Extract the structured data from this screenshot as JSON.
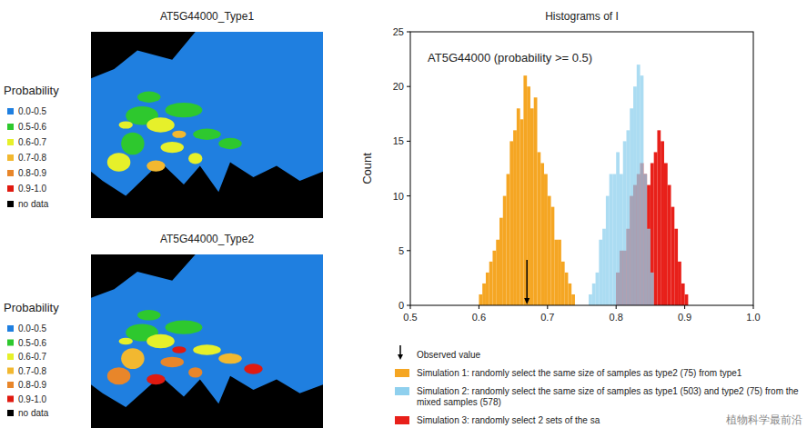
{
  "chart_data": [
    {
      "type": "map",
      "title": "AT5G44000_Type1",
      "legend_title": "Probability",
      "categories": [
        "0.0-0.5",
        "0.5-0.6",
        "0.6-0.7",
        "0.7-0.8",
        "0.8-0.9",
        "0.9-1.0",
        "no data"
      ],
      "colors": [
        "#1f7fe0",
        "#2ec82e",
        "#e6f02a",
        "#f2b830",
        "#e8862a",
        "#e01a10",
        "#000000"
      ]
    },
    {
      "type": "map",
      "title": "AT5G44000_Type2",
      "legend_title": "Probability",
      "categories": [
        "0.0-0.5",
        "0.5-0.6",
        "0.6-0.7",
        "0.7-0.8",
        "0.8-0.9",
        "0.9-1.0",
        "no data"
      ],
      "colors": [
        "#1f7fe0",
        "#2ec82e",
        "#e6f02a",
        "#f2b830",
        "#e8862a",
        "#e01a10",
        "#000000"
      ]
    },
    {
      "type": "histogram",
      "title": "Histograms of I",
      "y_label": "Count",
      "annotation": "AT5G44000 (probability >= 0.5)",
      "observed": 0.67,
      "observed_label": "Observed value",
      "xlim": [
        0.5,
        1.0
      ],
      "xticks": [
        0.5,
        0.6,
        0.7,
        0.8,
        0.9,
        {
          "value": 1.0,
          "label": "1.0"
        }
      ],
      "ylim": [
        0,
        25
      ],
      "yticks": [
        0,
        5,
        10,
        15,
        20,
        25
      ],
      "watermark": "植物科学最前沿",
      "series": [
        {
          "name": "Simulation 1: randomly select the same size of samples as type2 (75) from type1",
          "color": "#f5a623",
          "bins": [
            0.6,
            0.605,
            0.61,
            0.615,
            0.62,
            0.625,
            0.63,
            0.635,
            0.64,
            0.645,
            0.65,
            0.655,
            0.66,
            0.665,
            0.67,
            0.675,
            0.68,
            0.685,
            0.69,
            0.695,
            0.7,
            0.705,
            0.71,
            0.715,
            0.72,
            0.725,
            0.73,
            0.735,
            0.74
          ],
          "values": [
            1,
            2,
            3,
            4,
            5,
            6,
            8,
            10,
            12,
            15,
            16,
            18,
            17,
            21,
            20,
            18,
            19,
            14,
            13,
            12,
            10,
            9,
            6,
            6,
            4,
            3,
            2,
            1
          ]
        },
        {
          "name": "Simulation 3: randomly select 2 sets of the sa",
          "color": "#e8201a",
          "bins": [
            0.8,
            0.805,
            0.81,
            0.815,
            0.82,
            0.825,
            0.83,
            0.835,
            0.84,
            0.845,
            0.85,
            0.855,
            0.86,
            0.865,
            0.87,
            0.875,
            0.88,
            0.885,
            0.89,
            0.895,
            0.9,
            0.905
          ],
          "values": [
            3,
            5,
            5,
            7,
            10,
            11,
            12,
            13,
            12,
            11,
            13,
            14,
            16,
            15,
            13,
            11,
            9,
            7,
            4,
            2,
            1
          ]
        },
        {
          "name": "Simulation 2: randomly select the same size of samples as type1 (503) and type2 (75) from the mixed samples (578)",
          "color": "#8fd0ee",
          "bins": [
            0.76,
            0.765,
            0.77,
            0.775,
            0.78,
            0.785,
            0.79,
            0.795,
            0.8,
            0.805,
            0.81,
            0.815,
            0.82,
            0.825,
            0.83,
            0.835,
            0.84,
            0.845,
            0.85,
            0.855
          ],
          "values": [
            1,
            2,
            3,
            6,
            7,
            10,
            12,
            12,
            14,
            12,
            15,
            16,
            18,
            20,
            22,
            21,
            12,
            7,
            3
          ]
        }
      ]
    }
  ]
}
